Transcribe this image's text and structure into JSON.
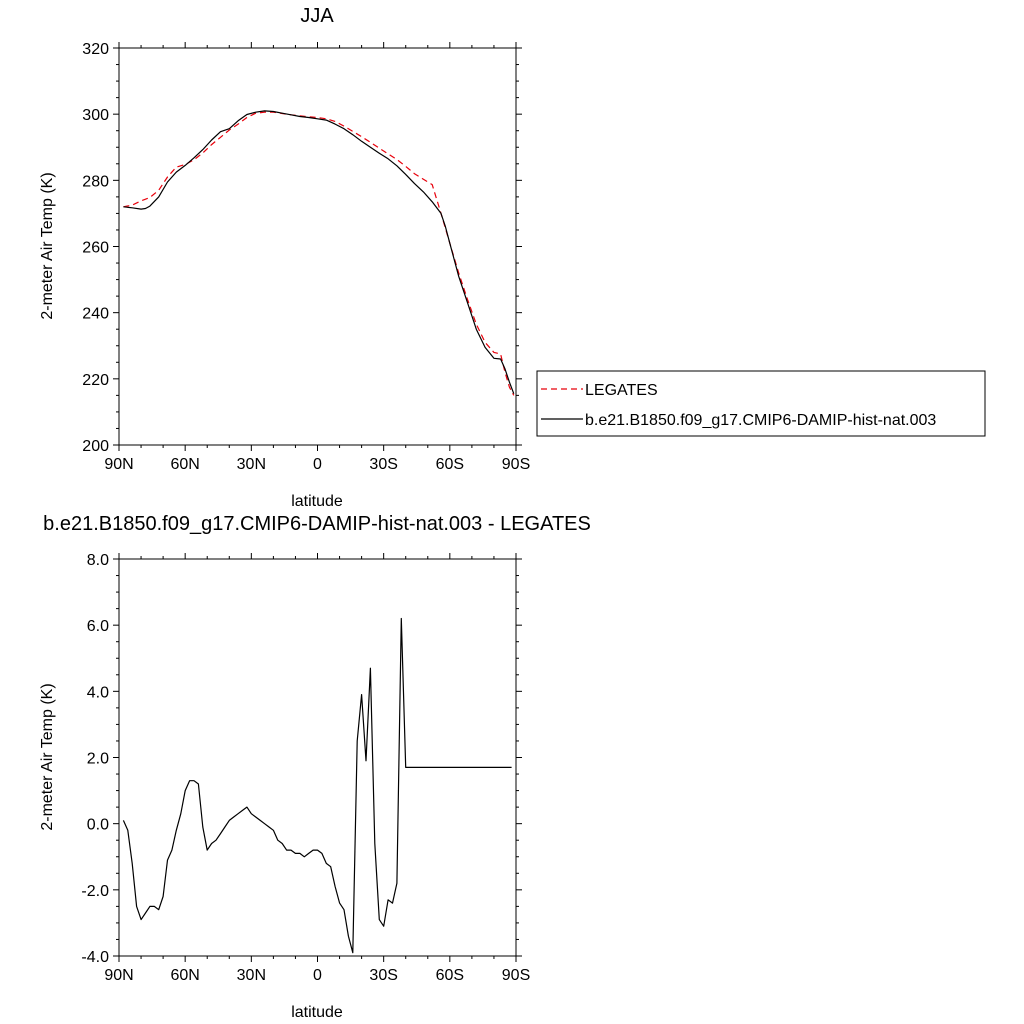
{
  "chart_data": [
    {
      "type": "line",
      "title": "JJA",
      "xlabel": "latitude",
      "ylabel": "2-meter Air Temp (K)",
      "xlim": [
        -90,
        90
      ],
      "ylim": [
        200,
        320
      ],
      "xticks": [
        -90,
        -60,
        -30,
        0,
        30,
        60,
        90
      ],
      "xtick_labels": [
        "90N",
        "60N",
        "30N",
        "0",
        "30S",
        "60S",
        "90S"
      ],
      "yticks": [
        200,
        220,
        240,
        260,
        280,
        300,
        320
      ],
      "ytick_labels": [
        "200",
        "220",
        "240",
        "260",
        "280",
        "300",
        "320"
      ],
      "legend": "right",
      "series": [
        {
          "name": "LEGATES",
          "color": "#e8000b",
          "style": "dashed",
          "x": [
            -88,
            -84,
            -80,
            -76,
            -72,
            -68,
            -64,
            -60,
            -56,
            -52,
            -48,
            -44,
            -40,
            -36,
            -32,
            -28,
            -24,
            -20,
            -16,
            -12,
            -8,
            -4,
            0,
            4,
            8,
            12,
            16,
            20,
            24,
            28,
            32,
            36,
            40,
            44,
            48,
            52,
            56,
            60,
            64,
            66,
            68,
            72,
            76,
            80,
            83,
            85,
            87,
            89
          ],
          "y": [
            272.0,
            272.5,
            273.8,
            274.8,
            277.0,
            281.0,
            284.0,
            284.8,
            286.2,
            288.3,
            290.8,
            293.0,
            295.2,
            297.0,
            299.0,
            300.3,
            300.6,
            300.6,
            300.2,
            299.8,
            299.5,
            299.2,
            299.0,
            298.6,
            297.8,
            296.4,
            294.8,
            293.2,
            291.5,
            289.7,
            288.0,
            286.3,
            284.2,
            282.0,
            280.3,
            278.7,
            270.0,
            261.0,
            252.0,
            248.0,
            244.0,
            236.5,
            231.0,
            228.0,
            227.5,
            222.0,
            217.5,
            215.0
          ]
        },
        {
          "name": "b.e21.B1850.f09_g17.CMIP6-DAMIP-hist-nat.003",
          "color": "#000000",
          "style": "solid",
          "x": [
            -88,
            -84,
            -80,
            -78,
            -76,
            -72,
            -68,
            -64,
            -60,
            -56,
            -52,
            -48,
            -44,
            -40,
            -36,
            -32,
            -28,
            -24,
            -20,
            -16,
            -12,
            -8,
            -4,
            0,
            4,
            8,
            12,
            16,
            20,
            24,
            28,
            32,
            36,
            40,
            44,
            48,
            52,
            56,
            58,
            60,
            64,
            68,
            72,
            76,
            80,
            83,
            85,
            87,
            89
          ],
          "y": [
            272.0,
            271.7,
            271.3,
            271.5,
            272.2,
            275.0,
            279.5,
            282.5,
            284.5,
            286.8,
            289.3,
            292.2,
            294.7,
            295.6,
            298.0,
            299.9,
            300.6,
            301.0,
            300.8,
            300.3,
            299.8,
            299.3,
            299.0,
            298.6,
            298.2,
            297.0,
            295.6,
            293.8,
            291.8,
            290.0,
            288.2,
            286.5,
            284.4,
            281.8,
            279.0,
            276.5,
            273.5,
            270.0,
            266.0,
            261.0,
            251.0,
            243.0,
            235.0,
            229.5,
            226.2,
            226.0,
            223.0,
            219.0,
            215.5
          ]
        }
      ]
    },
    {
      "type": "line",
      "title": "b.e21.B1850.f09_g17.CMIP6-DAMIP-hist-nat.003 - LEGATES",
      "xlabel": "latitude",
      "ylabel": "2-meter Air Temp (K)",
      "xlim": [
        -90,
        90
      ],
      "ylim": [
        -4.0,
        8.0
      ],
      "xticks": [
        -90,
        -60,
        -30,
        0,
        30,
        60,
        90
      ],
      "xtick_labels": [
        "90N",
        "60N",
        "30N",
        "0",
        "30S",
        "60S",
        "90S"
      ],
      "yticks": [
        -4,
        -2,
        0,
        2,
        4,
        6,
        8
      ],
      "ytick_labels": [
        "-4.0",
        "-2.0",
        "0.0",
        "2.0",
        "4.0",
        "6.0",
        "8.0"
      ],
      "series": [
        {
          "color": "#000000",
          "style": "solid",
          "x": [
            -88,
            -86,
            -84,
            -82,
            -80,
            -78,
            -76,
            -74,
            -72,
            -70,
            -68,
            -66,
            -64,
            -62,
            -60,
            -58,
            -56,
            -54,
            -52,
            -50,
            -48,
            -46,
            -44,
            -42,
            -40,
            -38,
            -36,
            -34,
            -32,
            -30,
            -28,
            -26,
            -24,
            -22,
            -20,
            -18,
            -16,
            -14,
            -12,
            -10,
            -8,
            -6,
            -4,
            -2,
            0,
            2,
            4,
            6,
            8,
            10,
            12,
            14,
            16,
            18,
            20,
            22,
            24,
            26,
            28,
            30,
            32,
            34,
            36,
            38,
            40,
            42,
            44,
            46,
            48,
            50,
            52,
            54,
            56,
            58,
            60,
            62,
            64,
            66,
            68,
            70,
            72,
            74,
            76,
            78,
            80,
            82,
            84,
            86,
            88
          ],
          "y": [
            0.1,
            -0.2,
            -1.2,
            -2.5,
            -2.9,
            -2.7,
            -2.5,
            -2.5,
            -2.6,
            -2.2,
            -1.1,
            -0.8,
            -0.2,
            0.3,
            1.0,
            1.3,
            1.3,
            1.2,
            -0.1,
            -0.8,
            -0.6,
            -0.5,
            -0.3,
            -0.1,
            0.1,
            0.2,
            0.3,
            0.4,
            0.5,
            0.3,
            0.2,
            0.1,
            0.0,
            -0.1,
            -0.2,
            -0.5,
            -0.6,
            -0.8,
            -0.8,
            -0.9,
            -0.9,
            -1.0,
            -0.9,
            -0.8,
            -0.8,
            -0.9,
            -1.2,
            -1.3,
            -1.9,
            -2.4,
            -2.6,
            -3.4,
            -3.9,
            2.5,
            3.9,
            1.9,
            4.7,
            -0.6,
            -2.9,
            -3.1,
            -2.3,
            -2.4,
            -1.8,
            6.2,
            1.7,
            1.7,
            1.7,
            1.7,
            1.7,
            1.7,
            1.7,
            1.7,
            1.7,
            1.7,
            1.7,
            1.7,
            1.7,
            1.7,
            1.7,
            1.7,
            1.7,
            1.7,
            1.7,
            1.7,
            1.7,
            1.7,
            1.7,
            1.7,
            1.7
          ]
        }
      ]
    }
  ]
}
